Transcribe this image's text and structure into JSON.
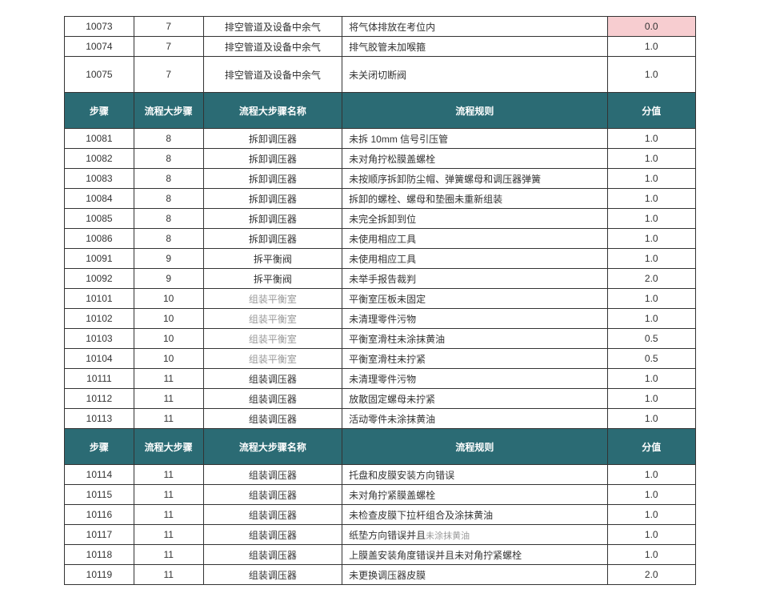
{
  "headers": {
    "step": "步骤",
    "bigstep": "流程大步骤",
    "bigstep_name": "流程大步骤名称",
    "rule": "流程规则",
    "score": "分值"
  },
  "top_rows": [
    {
      "step": "10073",
      "big": "7",
      "name": "排空管道及设备中余气",
      "rule": "将气体排放在考位内",
      "score": "0.0",
      "highlight": true
    },
    {
      "step": "10074",
      "big": "7",
      "name": "排空管道及设备中余气",
      "rule": "排气胶管未加喉箍",
      "score": "1.0"
    },
    {
      "step": "10075",
      "big": "7",
      "name": "排空管道及设备中余气",
      "rule": "未关闭切断阀",
      "score": "1.0",
      "tall": true
    }
  ],
  "mid_rows": [
    {
      "step": "10081",
      "big": "8",
      "name": "拆卸调压器",
      "rule": "未拆 10mm 信号引压管",
      "score": "1.0"
    },
    {
      "step": "10082",
      "big": "8",
      "name": "拆卸调压器",
      "rule": "未对角拧松膜盖螺栓",
      "score": "1.0"
    },
    {
      "step": "10083",
      "big": "8",
      "name": "拆卸调压器",
      "rule": "未按顺序拆卸防尘帽、弹簧螺母和调压器弹簧",
      "score": "1.0"
    },
    {
      "step": "10084",
      "big": "8",
      "name": "拆卸调压器",
      "rule": "拆卸的螺栓、螺母和垫圈未重新组装",
      "score": "1.0"
    },
    {
      "step": "10085",
      "big": "8",
      "name": "拆卸调压器",
      "rule": "未完全拆卸到位",
      "score": "1.0"
    },
    {
      "step": "10086",
      "big": "8",
      "name": "拆卸调压器",
      "rule": "未使用相应工具",
      "score": "1.0"
    },
    {
      "step": "10091",
      "big": "9",
      "name": "拆平衡阀",
      "rule": "未使用相应工具",
      "score": "1.0"
    },
    {
      "step": "10092",
      "big": "9",
      "name": "拆平衡阀",
      "rule": "未举手报告裁判",
      "score": "2.0"
    },
    {
      "step": "10101",
      "big": "10",
      "name": "组装平衡室",
      "rule": "平衡室压板未固定",
      "score": "1.0",
      "gray_name": true
    },
    {
      "step": "10102",
      "big": "10",
      "name": "组装平衡室",
      "rule": "未清理零件污物",
      "score": "1.0",
      "gray_name": true
    },
    {
      "step": "10103",
      "big": "10",
      "name": "组装平衡室",
      "rule": "平衡室滑柱未涂抹黄油",
      "score": "0.5",
      "gray_name": true
    },
    {
      "step": "10104",
      "big": "10",
      "name": "组装平衡室",
      "rule": "平衡室滑柱未拧紧",
      "score": "0.5",
      "gray_name": true
    },
    {
      "step": "10111",
      "big": "11",
      "name": "组装调压器",
      "rule": "未清理零件污物",
      "score": "1.0"
    },
    {
      "step": "10112",
      "big": "11",
      "name": "组装调压器",
      "rule": "放散固定螺母未拧紧",
      "score": "1.0"
    },
    {
      "step": "10113",
      "big": "11",
      "name": "组装调压器",
      "rule": "活动零件未涂抹黄油",
      "score": "1.0"
    }
  ],
  "bot_rows": [
    {
      "step": "10114",
      "big": "11",
      "name": "组装调压器",
      "rule": "托盘和皮膜安装方向错误",
      "score": "1.0"
    },
    {
      "step": "10115",
      "big": "11",
      "name": "组装调压器",
      "rule": "未对角拧紧膜盖螺栓",
      "score": "1.0"
    },
    {
      "step": "10116",
      "big": "11",
      "name": "组装调压器",
      "rule": "未检查皮膜下拉杆组合及涂抹黄油",
      "score": "1.0"
    },
    {
      "step": "10117",
      "big": "11",
      "name": "组装调压器",
      "rule_html": "纸垫方向错误并且<span class='small-gray'>未涂抹黄油</span>",
      "score": "1.0"
    },
    {
      "step": "10118",
      "big": "11",
      "name": "组装调压器",
      "rule": "上膜盖安装角度错误并且未对角拧紧螺栓",
      "score": "1.0"
    },
    {
      "step": "10119",
      "big": "11",
      "name": "组装调压器",
      "rule": "未更换调压器皮膜",
      "score": "2.0"
    }
  ]
}
